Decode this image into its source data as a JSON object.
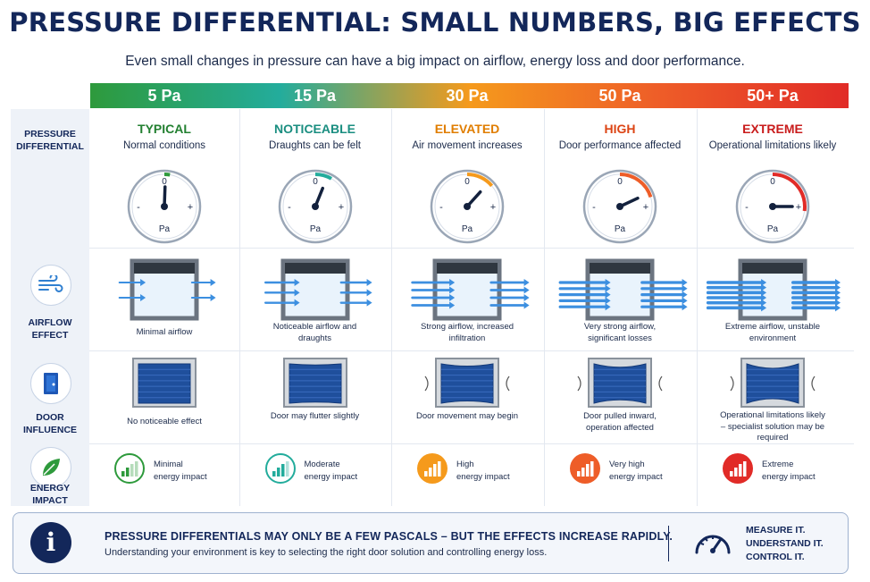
{
  "title": "PRESSURE DIFFERENTIAL: SMALL NUMBERS, BIG EFFECTS",
  "subtitle": "Even small changes in pressure can have a big impact on airflow, energy loss and door performance.",
  "row_labels": {
    "pressure": [
      "PRESSURE",
      "DIFFERENTIAL"
    ],
    "airflow": [
      "AIRFLOW",
      "EFFECT"
    ],
    "door": [
      "DOOR",
      "INFLUENCE"
    ],
    "energy": [
      "ENERGY",
      "IMPACT"
    ]
  },
  "gauge_text": {
    "zero": "0",
    "minus": "-",
    "plus": "+",
    "unit": "Pa"
  },
  "levels": [
    {
      "pressure": "5 Pa",
      "level": "TYPICAL",
      "desc": "Normal conditions",
      "airflow": "Minimal airflow",
      "door": "No noticeable effect",
      "energy": [
        "Minimal",
        "energy impact"
      ],
      "energy_bars": 1,
      "color": "#2e9a3c",
      "dark": "#238031",
      "needle": 0.02
    },
    {
      "pressure": "15 Pa",
      "level": "NOTICEABLE",
      "desc": "Draughts can be felt",
      "airflow": "Noticeable airflow and draughts",
      "door": "Door may flutter slightly",
      "energy": [
        "Moderate",
        "energy impact"
      ],
      "energy_bars": 2,
      "color": "#23ac9c",
      "dark": "#1a8e80",
      "needle": 0.22
    },
    {
      "pressure": "30 Pa",
      "level": "ELEVATED",
      "desc": "Air movement increases",
      "airflow": "Strong airflow, increased infiltration",
      "door": "Door movement may begin",
      "energy": [
        "High",
        "energy impact"
      ],
      "energy_bars": 3,
      "color": "#f59a1c",
      "dark": "#e07d00",
      "needle": 0.42
    },
    {
      "pressure": "50 Pa",
      "level": "HIGH",
      "desc": "Door performance affected",
      "airflow": "Very strong airflow, significant losses",
      "door": "Door pulled inward, operation affected",
      "energy": [
        "Very high",
        "energy impact"
      ],
      "energy_bars": 4,
      "color": "#ee5d28",
      "dark": "#dc4414",
      "needle": 0.65
    },
    {
      "pressure": "50+ Pa",
      "level": "EXTREME",
      "desc": "Operational limitations likely",
      "airflow": "Extreme airflow, unstable environment",
      "door": "Operational limitations likely – specialist solution may be required",
      "energy": [
        "Extreme",
        "energy impact"
      ],
      "energy_bars": 5,
      "color": "#e12b27",
      "dark": "#c91c1c",
      "needle": 0.9
    }
  ],
  "footer": {
    "headline": "PRESSURE DIFFERENTIALS MAY ONLY BE A FEW PASCALS – BUT THE EFFECTS INCREASE RAPIDLY.",
    "text": "Understanding your environment is key to selecting the right door solution and controlling energy loss.",
    "cta": [
      "MEASURE IT.",
      "UNDERSTAND IT.",
      "CONTROL IT."
    ],
    "info_glyph": "i"
  },
  "icons": [
    "wind-icon",
    "door-icon",
    "leaf-icon",
    "info-icon",
    "gauge-icon"
  ]
}
